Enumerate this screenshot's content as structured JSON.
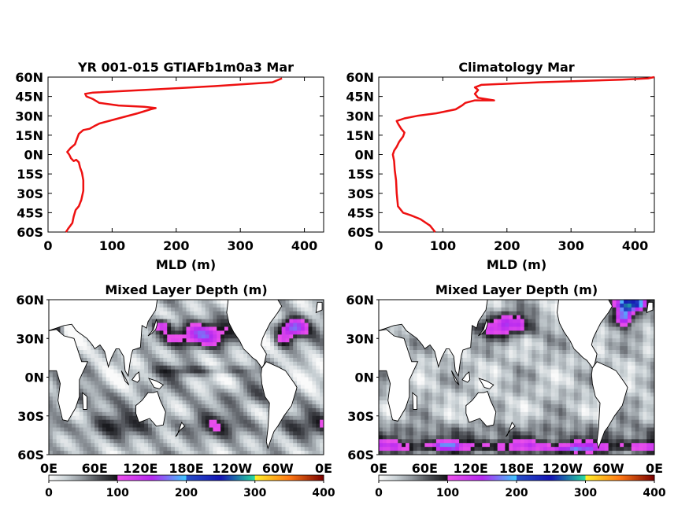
{
  "chart_data": [
    {
      "type": "line",
      "title": "YR 001-015 GTIAFb1m0a3 Mar",
      "xlabel": "MLD (m)",
      "ylabel": "",
      "xlim": [
        0,
        430
      ],
      "ylim": [
        -60,
        60
      ],
      "xticks": [
        "0",
        "100",
        "200",
        "300",
        "400"
      ],
      "yticks": [
        "60N",
        "45N",
        "30N",
        "15N",
        "0N",
        "15S",
        "30S",
        "45S",
        "60S"
      ],
      "grid": false,
      "color": "#ee1111",
      "series": [
        {
          "x": [
            28,
            32,
            38,
            40,
            43,
            48,
            52,
            55,
            55,
            53,
            50,
            48,
            44,
            40,
            36,
            33,
            30,
            35,
            42,
            45,
            48,
            55,
            65,
            72,
            80,
            110,
            140,
            160,
            168,
            150,
            110,
            80,
            70,
            60,
            58,
            70,
            150,
            260,
            350,
            365
          ],
          "y": [
            -60,
            -57,
            -53,
            -48,
            -43,
            -40,
            -35,
            -28,
            -20,
            -14,
            -10,
            -6,
            -4,
            -5,
            -3,
            0,
            2,
            5,
            8,
            12,
            16,
            19,
            20,
            22,
            24,
            28,
            32,
            35,
            36,
            37,
            38,
            40,
            43,
            45,
            47,
            48,
            50,
            53,
            56,
            59
          ]
        }
      ]
    },
    {
      "type": "line",
      "title": "Climatology Mar",
      "xlabel": "MLD (m)",
      "ylabel": "",
      "xlim": [
        0,
        430
      ],
      "ylim": [
        -60,
        60
      ],
      "xticks": [
        "0",
        "100",
        "200",
        "300",
        "400"
      ],
      "yticks": [
        "60N",
        "45N",
        "30N",
        "15N",
        "0N",
        "15S",
        "30S",
        "45S",
        "60S"
      ],
      "grid": false,
      "color": "#ee1111",
      "series": [
        {
          "x": [
            88,
            80,
            65,
            50,
            38,
            30,
            28,
            27,
            25,
            24,
            22,
            24,
            28,
            32,
            38,
            40,
            35,
            30,
            28,
            40,
            60,
            90,
            120,
            130,
            135,
            150,
            180,
            155,
            150,
            155,
            150,
            160,
            250,
            380,
            420,
            430
          ],
          "y": [
            -60,
            -55,
            -50,
            -47,
            -45,
            -40,
            -30,
            -20,
            -12,
            -5,
            0,
            3,
            6,
            10,
            14,
            17,
            20,
            24,
            26,
            28,
            30,
            32,
            35,
            38,
            40,
            42,
            42,
            44,
            47,
            50,
            52,
            54,
            56,
            58,
            59,
            60
          ]
        }
      ]
    },
    {
      "type": "heatmap",
      "title": "Mixed Layer Depth (m)",
      "xticks": [
        "0E",
        "60E",
        "120E",
        "180E",
        "120W",
        "60W",
        "0E"
      ],
      "yticks": [
        "60N",
        "30N",
        "0N",
        "30S",
        "60S"
      ],
      "xlim": [
        0,
        360
      ],
      "ylim": [
        -60,
        60
      ],
      "colorbar": {
        "ticks": [
          "0",
          "100",
          "200",
          "300",
          "400"
        ],
        "range": [
          0,
          400
        ]
      }
    },
    {
      "type": "heatmap",
      "title": "Mixed Layer Depth (m)",
      "xticks": [
        "0E",
        "60E",
        "120E",
        "180E",
        "120W",
        "60W",
        "0E"
      ],
      "yticks": [
        "60N",
        "30N",
        "0N",
        "30S",
        "60S"
      ],
      "xlim": [
        0,
        360
      ],
      "ylim": [
        -60,
        60
      ],
      "colorbar": {
        "ticks": [
          "0",
          "100",
          "200",
          "300",
          "400"
        ],
        "range": [
          0,
          400
        ]
      }
    }
  ]
}
